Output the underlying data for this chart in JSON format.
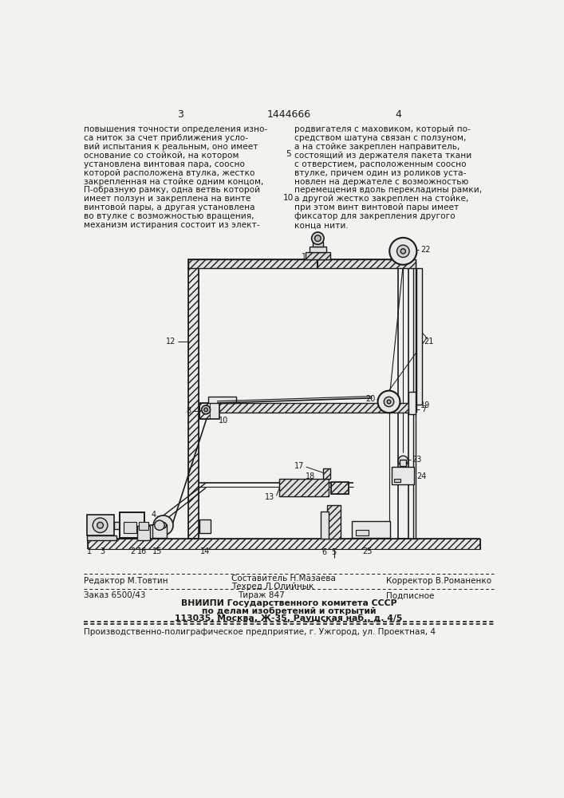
{
  "page_numbers": [
    "3",
    "4"
  ],
  "patent_number": "1444666",
  "bg_color": "#f2f2ee",
  "text_color": "#1a1a1a",
  "draw_color": "#1a1a1a",
  "left_text_lines": [
    "повышения точности определения изно-",
    "са ниток за счет приближения усло-",
    "вий испытания к реальным, оно имеет",
    "основание со стойкой, на котором",
    "установлена винтовая пара, соосно",
    "которой расположена втулка, жестко",
    "закрепленная на стойке одним концом,",
    "П-образную рамку, одна ветвь которой",
    "имеет ползун и закреплена на винте",
    "винтовой пары, а другая установлена",
    "во втулке с возможностью вращения,",
    "механизм истирания состоит из элект-"
  ],
  "right_text_lines": [
    "родвигателя с маховиком, который по-",
    "средством шатуна связан с ползуном,",
    "а на стойке закреплен направитель,",
    "состоящий из держателя пакета ткани",
    "с отверстием, расположенным соосно",
    "втулке, причем один из роликов уста-",
    "новлен на держателе с возможностью",
    "перемещения вдоль перекладины рамки,",
    "а другой жестко закреплен на стойке,",
    "при этом винт винтовой пары имеет",
    "фиксатор для закрепления другого",
    "конца нити."
  ],
  "footer_left": "Редактор М.Товтин",
  "footer_center_top": "Составитель Н.Мазаева",
  "footer_center_bot": "Техред Л.Олийнык",
  "footer_right": "Корректор В.Романенко",
  "footer_order": "Заказ 6500/43",
  "footer_tirazh": "Тираж 847",
  "footer_podpisnoe": "Подписное",
  "footer_vniip1": "ВНИИПИ Государственного комитета СССР",
  "footer_vniip2": "по делам изобретений и открытий",
  "footer_vniip3": "113035, Москва, Ж-35, Раушская наб., д. 4/5",
  "footer_prod": "Производственно-полиграфическое предприятие, г. Ужгород, ул. Проектная, 4"
}
